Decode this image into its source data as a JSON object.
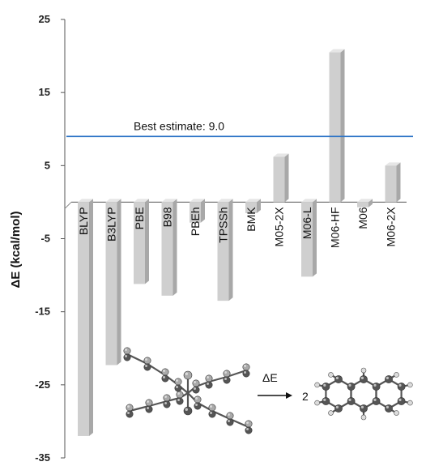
{
  "chart_data": {
    "type": "bar",
    "ylabel": "ΔE (kcal/mol)",
    "ylim": [
      -35,
      25
    ],
    "yticks": [
      25,
      15,
      5,
      -5,
      -15,
      -25,
      -35
    ],
    "categories": [
      "BLYP",
      "B3LYP",
      "PBE",
      "B98",
      "PBEh",
      "TPSSh",
      "BMK",
      "M05-2X",
      "M06-L",
      "M06-HF",
      "M06",
      "M06-2X"
    ],
    "values": [
      -32.0,
      -22.3,
      -11.2,
      -12.8,
      -2.8,
      -13.5,
      -1.5,
      6.2,
      -10.2,
      20.5,
      -0.7,
      5.0
    ],
    "reference_line": {
      "label": "Best estimate: 9.0",
      "value": 9.0,
      "color": "#2f75c7"
    },
    "bar_color": "#cfcfcf",
    "scheme": {
      "arrow_label": "ΔE",
      "coefficient": "2"
    }
  }
}
